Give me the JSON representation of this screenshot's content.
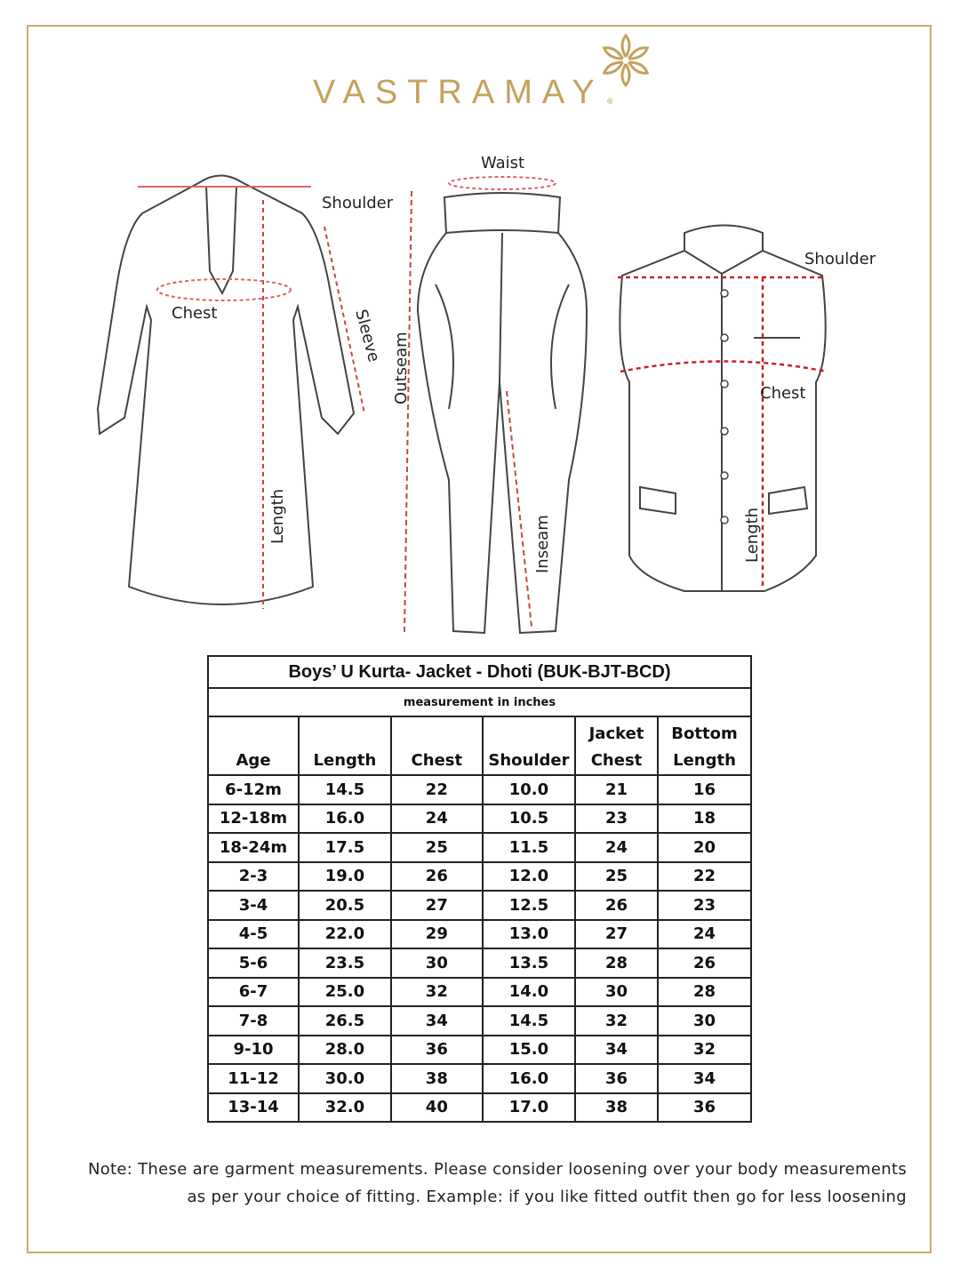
{
  "brand": {
    "name": "VASTRAMAY",
    "registered": "®",
    "color": "#c2a25d"
  },
  "diagram_labels": {
    "kurta": {
      "shoulder": "Shoulder",
      "chest": "Chest",
      "sleeve": "Sleeve",
      "length": "Length"
    },
    "dhoti": {
      "waist": "Waist",
      "outseam": "Outseam",
      "inseam": "Inseam"
    },
    "jacket": {
      "shoulder": "Shoulder",
      "chest": "Chest",
      "length": "Length"
    }
  },
  "table": {
    "title": "Boys’ U Kurta- Jacket - Dhoti (BUK-BJT-BCD)",
    "subtitle": "measurement in inches",
    "headers": [
      {
        "line1": "",
        "line2": "Age"
      },
      {
        "line1": "",
        "line2": "Length"
      },
      {
        "line1": "",
        "line2": "Chest"
      },
      {
        "line1": "",
        "line2": "Shoulder"
      },
      {
        "line1": "Jacket",
        "line2": "Chest"
      },
      {
        "line1": "Bottom",
        "line2": "Length"
      }
    ],
    "rows": [
      [
        "6-12m",
        "14.5",
        "22",
        "10.0",
        "21",
        "16"
      ],
      [
        "12-18m",
        "16.0",
        "24",
        "10.5",
        "23",
        "18"
      ],
      [
        "18-24m",
        "17.5",
        "25",
        "11.5",
        "24",
        "20"
      ],
      [
        "2-3",
        "19.0",
        "26",
        "12.0",
        "25",
        "22"
      ],
      [
        "3-4",
        "20.5",
        "27",
        "12.5",
        "26",
        "23"
      ],
      [
        "4-5",
        "22.0",
        "29",
        "13.0",
        "27",
        "24"
      ],
      [
        "5-6",
        "23.5",
        "30",
        "13.5",
        "28",
        "26"
      ],
      [
        "6-7",
        "25.0",
        "32",
        "14.0",
        "30",
        "28"
      ],
      [
        "7-8",
        "26.5",
        "34",
        "14.5",
        "32",
        "30"
      ],
      [
        "9-10",
        "28.0",
        "36",
        "15.0",
        "34",
        "32"
      ],
      [
        "11-12",
        "30.0",
        "38",
        "16.0",
        "36",
        "34"
      ],
      [
        "13-14",
        "32.0",
        "40",
        "17.0",
        "38",
        "36"
      ]
    ]
  },
  "note": {
    "line1": "Note: These are garment measurements. Please consider loosening over your body measurements",
    "line2": "as per your choice of fitting. Example: if you like fitted outfit then go for less loosening"
  }
}
